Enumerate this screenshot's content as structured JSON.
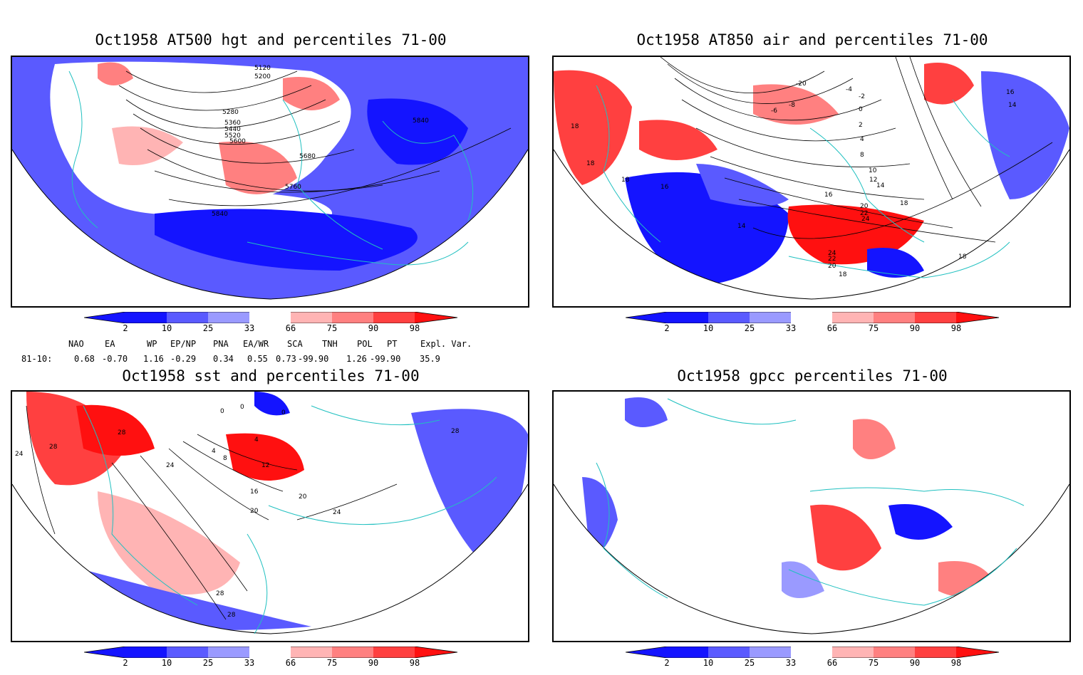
{
  "panels": [
    {
      "id": "p1",
      "title": "Oct1958 AT500 hgt and percentiles 71-00",
      "contour_labels": [
        "5120",
        "5200",
        "5280",
        "5360",
        "5440",
        "5520",
        "5600",
        "5680",
        "5760",
        "5840",
        "5840"
      ]
    },
    {
      "id": "p2",
      "title": "Oct1958 AT850 air and percentiles 71-00",
      "contour_labels": [
        "-20",
        "-8",
        "-6",
        "-4",
        "-2",
        "0",
        "2",
        "4",
        "8",
        "10",
        "12",
        "14",
        "14",
        "16",
        "16",
        "18",
        "18",
        "18",
        "18",
        "20",
        "22",
        "24",
        "24",
        "22",
        "20",
        "18",
        "18",
        "16",
        "14"
      ]
    },
    {
      "id": "p3",
      "title": "Oct1958 sst and percentiles 71-00",
      "contour_labels": [
        "0",
        "0",
        "0",
        "4",
        "4",
        "8",
        "12",
        "16",
        "20",
        "24",
        "24",
        "24",
        "28",
        "28",
        "28",
        "28",
        "28",
        "20"
      ]
    },
    {
      "id": "p4",
      "title": "Oct1958 gpcc percentiles 71-00",
      "contour_labels": []
    }
  ],
  "colorbar": {
    "ticks": [
      "2",
      "10",
      "25",
      "33",
      "66",
      "75",
      "90",
      "98"
    ],
    "colors": {
      "blue_dark": "#1414ff",
      "blue_med": "#5a5aff",
      "blue_light": "#9a9aff",
      "blue_pale": "#c8c8ff",
      "red_pale": "#ffb4b4",
      "red_light": "#ff8080",
      "red_med": "#ff4040",
      "red_dark": "#ff1010",
      "coast": "#20c0c0"
    }
  },
  "indices": {
    "header": [
      "NAO",
      "EA",
      "WP",
      "EP/NP",
      "PNA",
      "EA/WR",
      "SCA",
      "TNH",
      "POL",
      "PT",
      "Expl. Var."
    ],
    "row_label": "81-10:",
    "values": [
      "0.68",
      "-0.70",
      "1.16",
      "-0.29",
      "0.34",
      "0.55",
      "0.73",
      "-99.90",
      "1.26",
      "-99.90",
      "35.9"
    ]
  }
}
